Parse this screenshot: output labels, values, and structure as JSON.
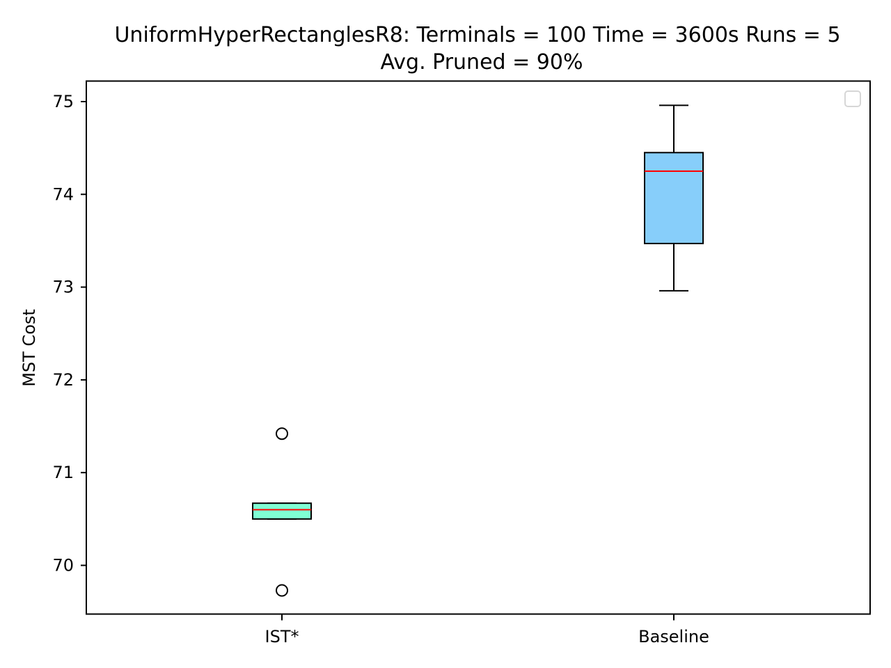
{
  "chart_data": {
    "type": "box",
    "title_line1": "UniformHyperRectanglesR8:  Terminals = 100  Time = 3600s  Runs = 5",
    "title_line2": "Avg. Pruned = 90%",
    "xlabel": "",
    "ylabel": "MST Cost",
    "ylim": [
      69.5,
      75.25
    ],
    "yticks": [
      "70",
      "71",
      "72",
      "73",
      "74",
      "75"
    ],
    "categories": [
      "IST*",
      "Baseline"
    ],
    "boxes": [
      {
        "label": "IST*",
        "whisker_low": 70.5,
        "q1": 70.5,
        "median": 70.6,
        "q3": 70.67,
        "whisker_high": 70.67,
        "outliers": [
          71.42,
          69.73
        ],
        "fill": "#7fffd4"
      },
      {
        "label": "Baseline",
        "whisker_low": 72.96,
        "q1": 73.47,
        "median": 74.25,
        "q3": 74.45,
        "whisker_high": 74.96,
        "outliers": [],
        "fill": "#87cefa"
      }
    ],
    "median_color": "#ff0000",
    "legend": "top-right",
    "grid": false
  }
}
